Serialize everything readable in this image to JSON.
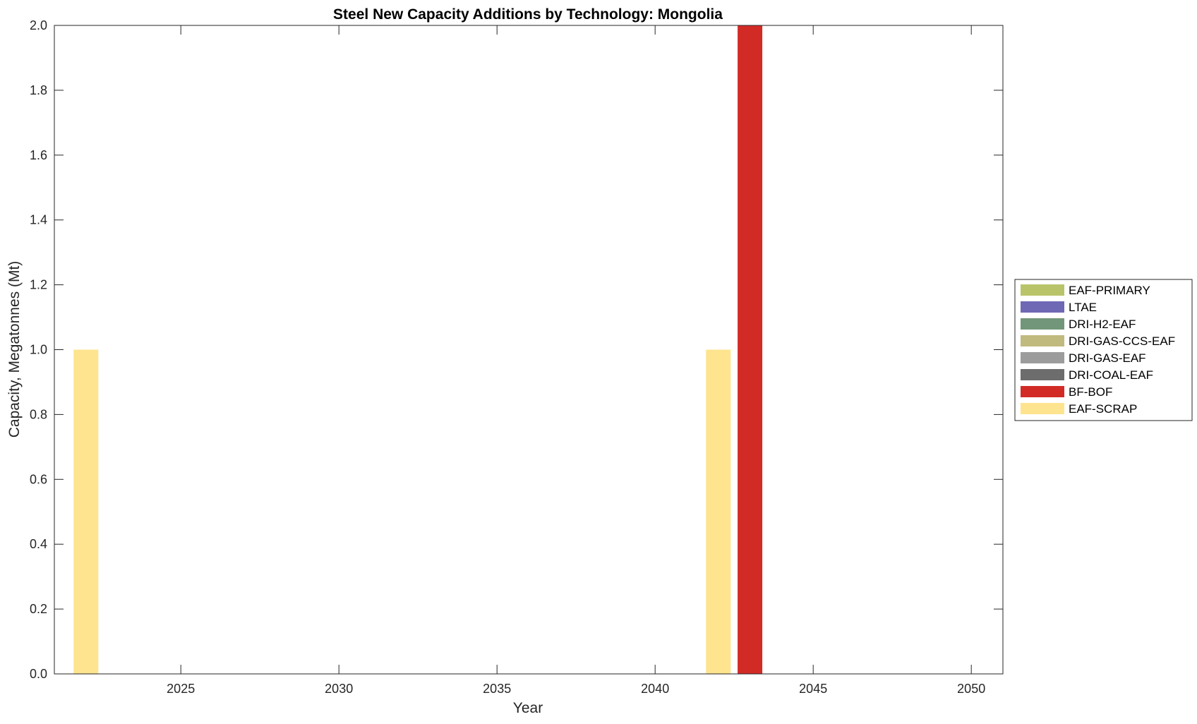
{
  "chart_data": {
    "type": "bar",
    "stacked": true,
    "title": "Steel New Capacity Additions by Technology: Mongolia",
    "xlabel": "Year",
    "ylabel": "Capacity, Megatonnes (Mt)",
    "xlim": [
      2021,
      2051
    ],
    "ylim": [
      0,
      2
    ],
    "xticks": [
      2025,
      2030,
      2035,
      2040,
      2045,
      2050
    ],
    "yticks": [
      0.0,
      0.2,
      0.4,
      0.6,
      0.8,
      1.0,
      1.2,
      1.4,
      1.6,
      1.8,
      2.0
    ],
    "ytick_labels": [
      "0.0",
      "0.2",
      "0.4",
      "0.6",
      "0.8",
      "1.0",
      "1.2",
      "1.4",
      "1.6",
      "1.8",
      "2.0"
    ],
    "grid": false,
    "legend_position": "right",
    "series": [
      {
        "name": "EAF-PRIMARY",
        "color": "#b9c46a",
        "points": []
      },
      {
        "name": "LTAE",
        "color": "#6f68b5",
        "points": []
      },
      {
        "name": "DRI-H2-EAF",
        "color": "#72967a",
        "points": []
      },
      {
        "name": "DRI-GAS-CCS-EAF",
        "color": "#c1ba7e",
        "points": []
      },
      {
        "name": "DRI-GAS-EAF",
        "color": "#9c9c9c",
        "points": []
      },
      {
        "name": "DRI-COAL-EAF",
        "color": "#6d6d6d",
        "points": []
      },
      {
        "name": "BF-BOF",
        "color": "#d22b26",
        "points": [
          {
            "x": 2043,
            "y": 2.0
          }
        ]
      },
      {
        "name": "EAF-SCRAP",
        "color": "#fee48f",
        "points": [
          {
            "x": 2022,
            "y": 1.0
          },
          {
            "x": 2042,
            "y": 1.0
          }
        ]
      }
    ]
  }
}
